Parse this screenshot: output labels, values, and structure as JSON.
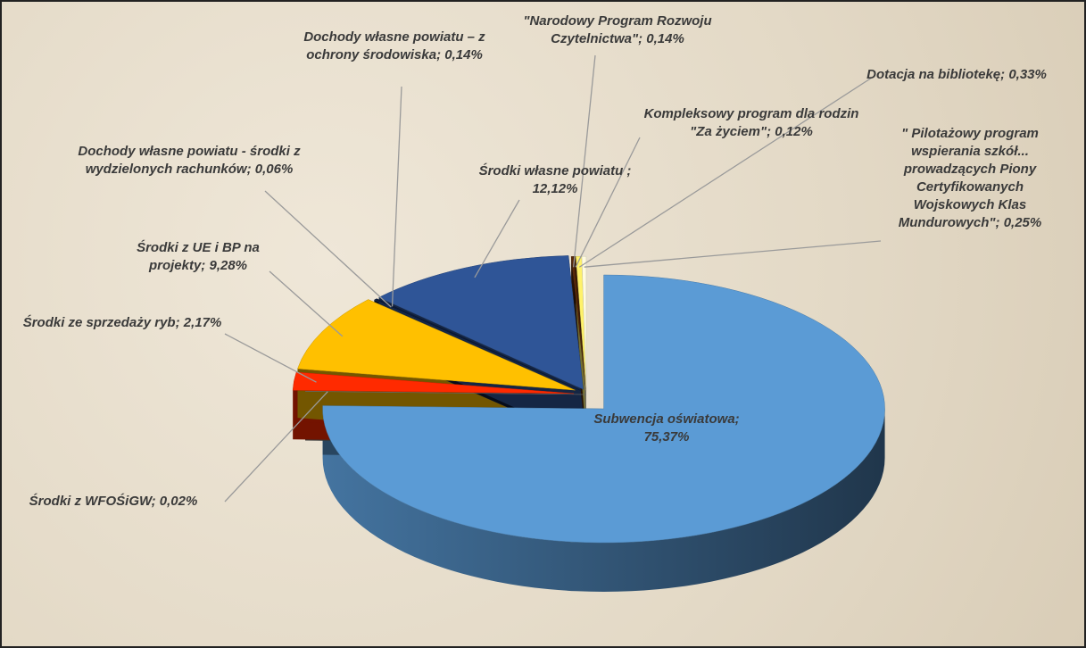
{
  "chart_data": {
    "type": "pie",
    "three_d": true,
    "categories": [
      "Subwencja oświatowa;",
      "Środki z WFOŚiGW;",
      "Środki ze sprzedaży ryb;",
      "Środki z UE i BP na projekty;",
      "Dochody własne powiatu - środki z wydzielonych rachunków;",
      "Dochody własne powiatu – z ochrony środowiska;",
      "Środki własne powiatu ;",
      "\"Narodowy Program Rozwoju Czytelnictwa\";",
      "Kompleksowy program dla rodzin \"Za życiem\";",
      "Dotacja na bibliotekę;",
      "\" Pilotażowy program wspierania szkół... prowadzących Piony Certyfikowanych Wojskowych Klas Mundurowych\";"
    ],
    "values": [
      75.37,
      0.02,
      2.17,
      9.28,
      0.06,
      0.14,
      12.12,
      0.14,
      0.12,
      0.33,
      0.25
    ],
    "value_labels": [
      "75,37%",
      "0,02%",
      "2,17%",
      "9,28%",
      "0,06%",
      "0,14%",
      "12,12%",
      "0,14%",
      "0,12%",
      "0,33%",
      "0,25%"
    ],
    "colors": [
      "#5b9bd5",
      "#7f7f7f",
      "#ff2a00",
      "#ffc000",
      "#1f3864",
      "#0d1b3a",
      "#2f5597",
      "#5a2a0a",
      "#3b1c08",
      "#fff26a",
      "#fffbe0"
    ]
  }
}
